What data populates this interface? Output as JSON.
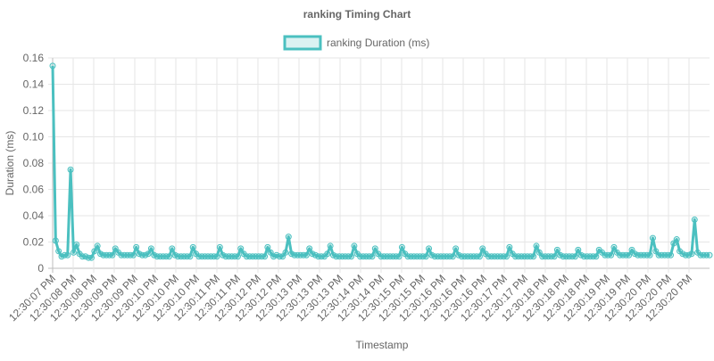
{
  "chart_data": {
    "type": "line",
    "title": "ranking Timing Chart",
    "xlabel": "Timestamp",
    "ylabel": "Duration (ms)",
    "ylim": [
      0,
      0.16
    ],
    "y_ticks": [
      "0",
      "0.02",
      "0.04",
      "0.06",
      "0.08",
      "0.10",
      "0.12",
      "0.14",
      "0.16"
    ],
    "grid": true,
    "legend_position": "top",
    "x_tick_labels": [
      "12:30:07 PM",
      "12:30:08 PM",
      "12:30:08 PM",
      "12:30:09 PM",
      "12:30:09 PM",
      "12:30:10 PM",
      "12:30:10 PM",
      "12:30:10 PM",
      "12:30:11 PM",
      "12:30:11 PM",
      "12:30:12 PM",
      "12:30:12 PM",
      "12:30:13 PM",
      "12:30:13 PM",
      "12:30:13 PM",
      "12:30:14 PM",
      "12:30:14 PM",
      "12:30:15 PM",
      "12:30:15 PM",
      "12:30:16 PM",
      "12:30:16 PM",
      "12:30:16 PM",
      "12:30:17 PM",
      "12:30:17 PM",
      "12:30:18 PM",
      "12:30:18 PM",
      "12:30:18 PM",
      "12:30:19 PM",
      "12:30:19 PM",
      "12:30:20 PM",
      "12:30:20 PM",
      "12:30:20 PM"
    ],
    "series": [
      {
        "name": "ranking Duration (ms)",
        "color": "#4bc0c0",
        "fill": "rgba(75,192,192,0.2)",
        "values": [
          0.154,
          0.021,
          0.013,
          0.009,
          0.01,
          0.01,
          0.075,
          0.012,
          0.018,
          0.011,
          0.009,
          0.009,
          0.008,
          0.008,
          0.013,
          0.017,
          0.011,
          0.01,
          0.01,
          0.01,
          0.01,
          0.015,
          0.012,
          0.01,
          0.01,
          0.01,
          0.01,
          0.01,
          0.016,
          0.011,
          0.01,
          0.01,
          0.011,
          0.015,
          0.01,
          0.009,
          0.009,
          0.009,
          0.009,
          0.009,
          0.015,
          0.01,
          0.009,
          0.009,
          0.009,
          0.009,
          0.009,
          0.016,
          0.011,
          0.009,
          0.009,
          0.009,
          0.009,
          0.009,
          0.009,
          0.009,
          0.016,
          0.01,
          0.009,
          0.009,
          0.009,
          0.009,
          0.009,
          0.015,
          0.011,
          0.009,
          0.009,
          0.009,
          0.009,
          0.009,
          0.009,
          0.009,
          0.016,
          0.012,
          0.009,
          0.01,
          0.009,
          0.009,
          0.012,
          0.024,
          0.011,
          0.01,
          0.01,
          0.01,
          0.01,
          0.01,
          0.015,
          0.011,
          0.01,
          0.009,
          0.009,
          0.009,
          0.011,
          0.017,
          0.01,
          0.009,
          0.009,
          0.009,
          0.009,
          0.009,
          0.009,
          0.017,
          0.011,
          0.009,
          0.009,
          0.009,
          0.009,
          0.009,
          0.015,
          0.011,
          0.009,
          0.009,
          0.009,
          0.009,
          0.009,
          0.009,
          0.009,
          0.016,
          0.011,
          0.009,
          0.009,
          0.009,
          0.009,
          0.009,
          0.009,
          0.009,
          0.015,
          0.01,
          0.009,
          0.009,
          0.009,
          0.009,
          0.009,
          0.009,
          0.009,
          0.015,
          0.01,
          0.009,
          0.009,
          0.009,
          0.009,
          0.009,
          0.009,
          0.009,
          0.015,
          0.011,
          0.009,
          0.009,
          0.009,
          0.009,
          0.009,
          0.009,
          0.009,
          0.016,
          0.011,
          0.009,
          0.009,
          0.009,
          0.009,
          0.009,
          0.009,
          0.009,
          0.017,
          0.012,
          0.009,
          0.009,
          0.009,
          0.009,
          0.009,
          0.014,
          0.01,
          0.009,
          0.009,
          0.009,
          0.009,
          0.009,
          0.014,
          0.01,
          0.009,
          0.009,
          0.009,
          0.009,
          0.009,
          0.014,
          0.012,
          0.01,
          0.01,
          0.01,
          0.016,
          0.012,
          0.01,
          0.01,
          0.01,
          0.01,
          0.014,
          0.011,
          0.01,
          0.01,
          0.01,
          0.01,
          0.01,
          0.023,
          0.013,
          0.01,
          0.01,
          0.01,
          0.01,
          0.01,
          0.019,
          0.022,
          0.013,
          0.011,
          0.01,
          0.01,
          0.011,
          0.037,
          0.012,
          0.01,
          0.01,
          0.01,
          0.01
        ]
      }
    ]
  }
}
